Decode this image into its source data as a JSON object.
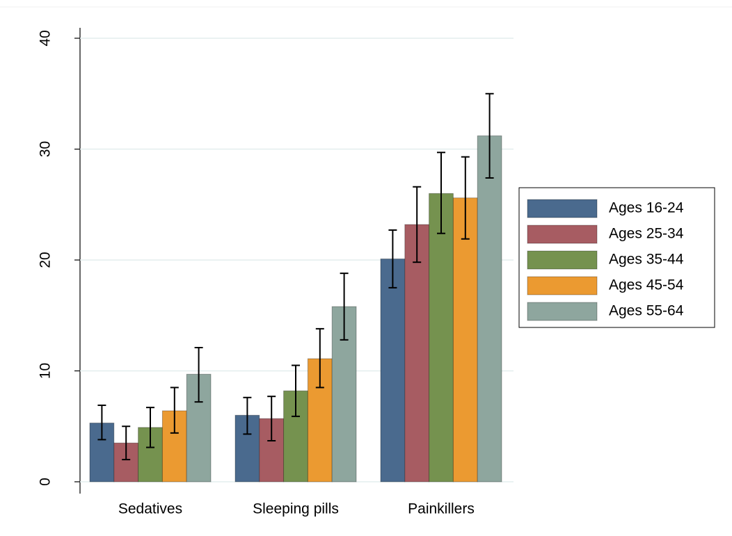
{
  "chart_data": {
    "type": "bar",
    "categories": [
      "Sedatives",
      "Sleeping pills",
      "Painkillers"
    ],
    "series": [
      {
        "name": "Ages 16-24",
        "color": "#4a6a8e",
        "values": [
          5.3,
          6.0,
          20.1
        ],
        "ci_low": [
          3.8,
          4.3,
          17.5
        ],
        "ci_high": [
          6.9,
          7.6,
          22.7
        ]
      },
      {
        "name": "Ages 25-34",
        "color": "#a75c62",
        "values": [
          3.5,
          5.7,
          23.2
        ],
        "ci_low": [
          2.0,
          3.7,
          19.8
        ],
        "ci_high": [
          5.0,
          7.7,
          26.6
        ]
      },
      {
        "name": "Ages 35-44",
        "color": "#75924f",
        "values": [
          4.9,
          8.2,
          26.0
        ],
        "ci_low": [
          3.1,
          5.9,
          22.4
        ],
        "ci_high": [
          6.7,
          10.5,
          29.7
        ]
      },
      {
        "name": "Ages 45-54",
        "color": "#eb9a31",
        "values": [
          6.4,
          11.1,
          25.6
        ],
        "ci_low": [
          4.4,
          8.5,
          21.9
        ],
        "ci_high": [
          8.5,
          13.8,
          29.3
        ]
      },
      {
        "name": "Ages 55-64",
        "color": "#8ea69e",
        "values": [
          9.7,
          15.8,
          31.2
        ],
        "ci_low": [
          7.2,
          12.8,
          27.4
        ],
        "ci_high": [
          12.1,
          18.8,
          35.0
        ]
      }
    ],
    "ylim": [
      0,
      40
    ],
    "yticks": [
      0,
      10,
      20,
      30,
      40
    ],
    "grid": true,
    "legend": "right"
  }
}
